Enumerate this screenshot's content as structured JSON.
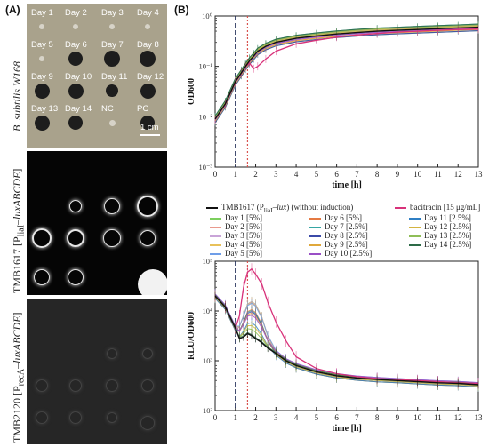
{
  "panel_a": {
    "label": "(A)",
    "strain_top": "B. subtilis W168",
    "strain_mid_html": "TMB1617 [P<sub>liaI</sub>–<i>luxABCDE</i>]",
    "strain_bot_html": "TMB2120 [P<sub>recA</sub>–<i>luxABCDE</i>]",
    "scale_bar": "1 cm",
    "well_labels": [
      "Day 1",
      "Day 2",
      "Day 3",
      "Day 4",
      "Day 5",
      "Day 6",
      "Day 7",
      "Day 8",
      "Day 9",
      "Day 10",
      "Day 11",
      "Day 12",
      "Day 13",
      "Day 14",
      "NC",
      "PC"
    ],
    "colors": {
      "plate_top": "#a9a28c",
      "plate_dark": "#050505",
      "plate_gray": "#262626"
    }
  },
  "panel_b": {
    "label": "(B)"
  },
  "legend": {
    "control_html": "TMB1617 (P<sub>liaI</sub>–<i>lux</i>) (without induction)",
    "bacitracin": "bacitracin [15 μg/mL]",
    "entries": [
      "Day 1 [5%]",
      "Day 2 [5%]",
      "Day 3 [5%]",
      "Day 4 [5%]",
      "Day 5 [5%]",
      "Day 6 [5%]",
      "Day 7 [2.5%]",
      "Day 8 [2.5%]",
      "Day 9 [2.5%]",
      "Day 10 [2.5%]",
      "Day 11 [2.5%]",
      "Day 12 [2.5%]",
      "Day 13 [2.5%]",
      "Day 14 [2.5%]"
    ],
    "colors": [
      "#7ccf5e",
      "#e99a8e",
      "#c9a4d8",
      "#e8c15a",
      "#6f9ee8",
      "#e57a43",
      "#36a6a3",
      "#3b4aa8",
      "#e0a83b",
      "#9a4fc6",
      "#2f7fc4",
      "#d4b441",
      "#8fbe57",
      "#2d6b47"
    ],
    "control_color": "#111111",
    "bacitracin_color": "#d8327a"
  },
  "chart_data": [
    {
      "type": "line",
      "title": "",
      "xlabel": "time [h]",
      "ylabel": "OD600",
      "xlim": [
        0,
        13
      ],
      "ylim_log10": [
        -3,
        0
      ],
      "yscale": "log",
      "xticks": [
        "0",
        "1",
        "2",
        "3",
        "4",
        "5",
        "6",
        "7",
        "8",
        "9",
        "10",
        "11",
        "12",
        "13"
      ],
      "ytick_labels": [
        "10⁻³",
        "10⁻²",
        "10⁻¹",
        "10⁰"
      ],
      "vlines": [
        {
          "x": 1.0,
          "style": "dashed",
          "color": "#1e2a55"
        },
        {
          "x": 1.6,
          "style": "dotted",
          "color": "#d9534f"
        }
      ],
      "series_bundle": {
        "x": [
          0,
          0.5,
          1,
          1.3,
          1.5,
          1.7,
          1.9,
          2.1,
          2.5,
          3,
          4,
          5,
          6,
          7,
          8,
          9,
          10,
          11,
          12,
          13
        ],
        "typical_y": [
          0.009,
          0.018,
          0.05,
          0.075,
          0.1,
          0.13,
          0.16,
          0.2,
          0.25,
          0.3,
          0.36,
          0.4,
          0.44,
          0.47,
          0.5,
          0.52,
          0.54,
          0.56,
          0.58,
          0.6
        ],
        "bacitracin_y": [
          0.009,
          0.018,
          0.05,
          0.075,
          0.1,
          0.115,
          0.09,
          0.1,
          0.14,
          0.2,
          0.28,
          0.33,
          0.38,
          0.42,
          0.45,
          0.48,
          0.5,
          0.52,
          0.54,
          0.55
        ]
      }
    },
    {
      "type": "line",
      "title": "",
      "xlabel": "time [h]",
      "ylabel": "RLU/OD600",
      "xlim": [
        0,
        13
      ],
      "ylim_log10": [
        2,
        5
      ],
      "yscale": "log",
      "xticks": [
        "0",
        "1",
        "2",
        "3",
        "4",
        "5",
        "6",
        "7",
        "8",
        "9",
        "10",
        "11",
        "12",
        "13"
      ],
      "ytick_labels": [
        "10²",
        "10³",
        "10⁴",
        "10⁵"
      ],
      "vlines": [
        {
          "x": 1.0,
          "style": "dashed",
          "color": "#1e2a55"
        },
        {
          "x": 1.6,
          "style": "dotted",
          "color": "#d9534f"
        }
      ],
      "x": [
        0,
        0.5,
        1,
        1.2,
        1.4,
        1.6,
        1.8,
        2,
        2.3,
        2.6,
        3,
        3.5,
        4,
        5,
        6,
        7,
        8,
        9,
        10,
        11,
        12,
        13
      ],
      "control_y": [
        20000,
        12000,
        4500,
        2800,
        3000,
        3500,
        3200,
        2800,
        2300,
        1800,
        1400,
        1000,
        800,
        600,
        500,
        450,
        420,
        400,
        380,
        360,
        350,
        330
      ],
      "bacitracin_y": [
        20000,
        12000,
        4500,
        8000,
        30000,
        60000,
        70000,
        55000,
        35000,
        15000,
        6000,
        2500,
        1200,
        700,
        550,
        480,
        440,
        420,
        400,
        380,
        360,
        350
      ]
    }
  ]
}
